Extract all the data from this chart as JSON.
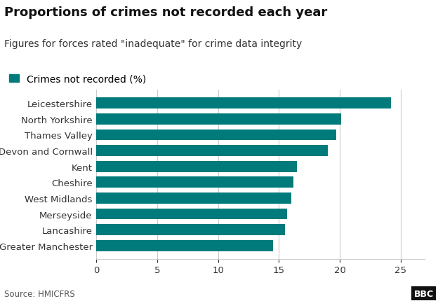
{
  "title": "Proportions of crimes not recorded each year",
  "subtitle": "Figures for forces rated \"inadequate\" for crime data integrity",
  "legend_label": "Crimes not recorded (%)",
  "source": "Source: HMICFRS",
  "categories": [
    "Greater Manchester",
    "Lancashire",
    "Merseyside",
    "West Midlands",
    "Cheshire",
    "Kent",
    "Devon and Cornwall",
    "Thames Valley",
    "North Yorkshire",
    "Leicestershire"
  ],
  "values": [
    14.5,
    15.5,
    15.7,
    16.0,
    16.2,
    16.5,
    19.0,
    19.7,
    20.1,
    24.2
  ],
  "bar_color": "#007A7A",
  "background_color": "#ffffff",
  "grid_color": "#cccccc",
  "text_color": "#333333",
  "title_color": "#111111",
  "xlim": [
    0,
    27
  ],
  "xticks": [
    0,
    5,
    10,
    15,
    20,
    25
  ],
  "title_fontsize": 13,
  "subtitle_fontsize": 10,
  "legend_fontsize": 10,
  "tick_fontsize": 9.5,
  "source_fontsize": 8.5
}
